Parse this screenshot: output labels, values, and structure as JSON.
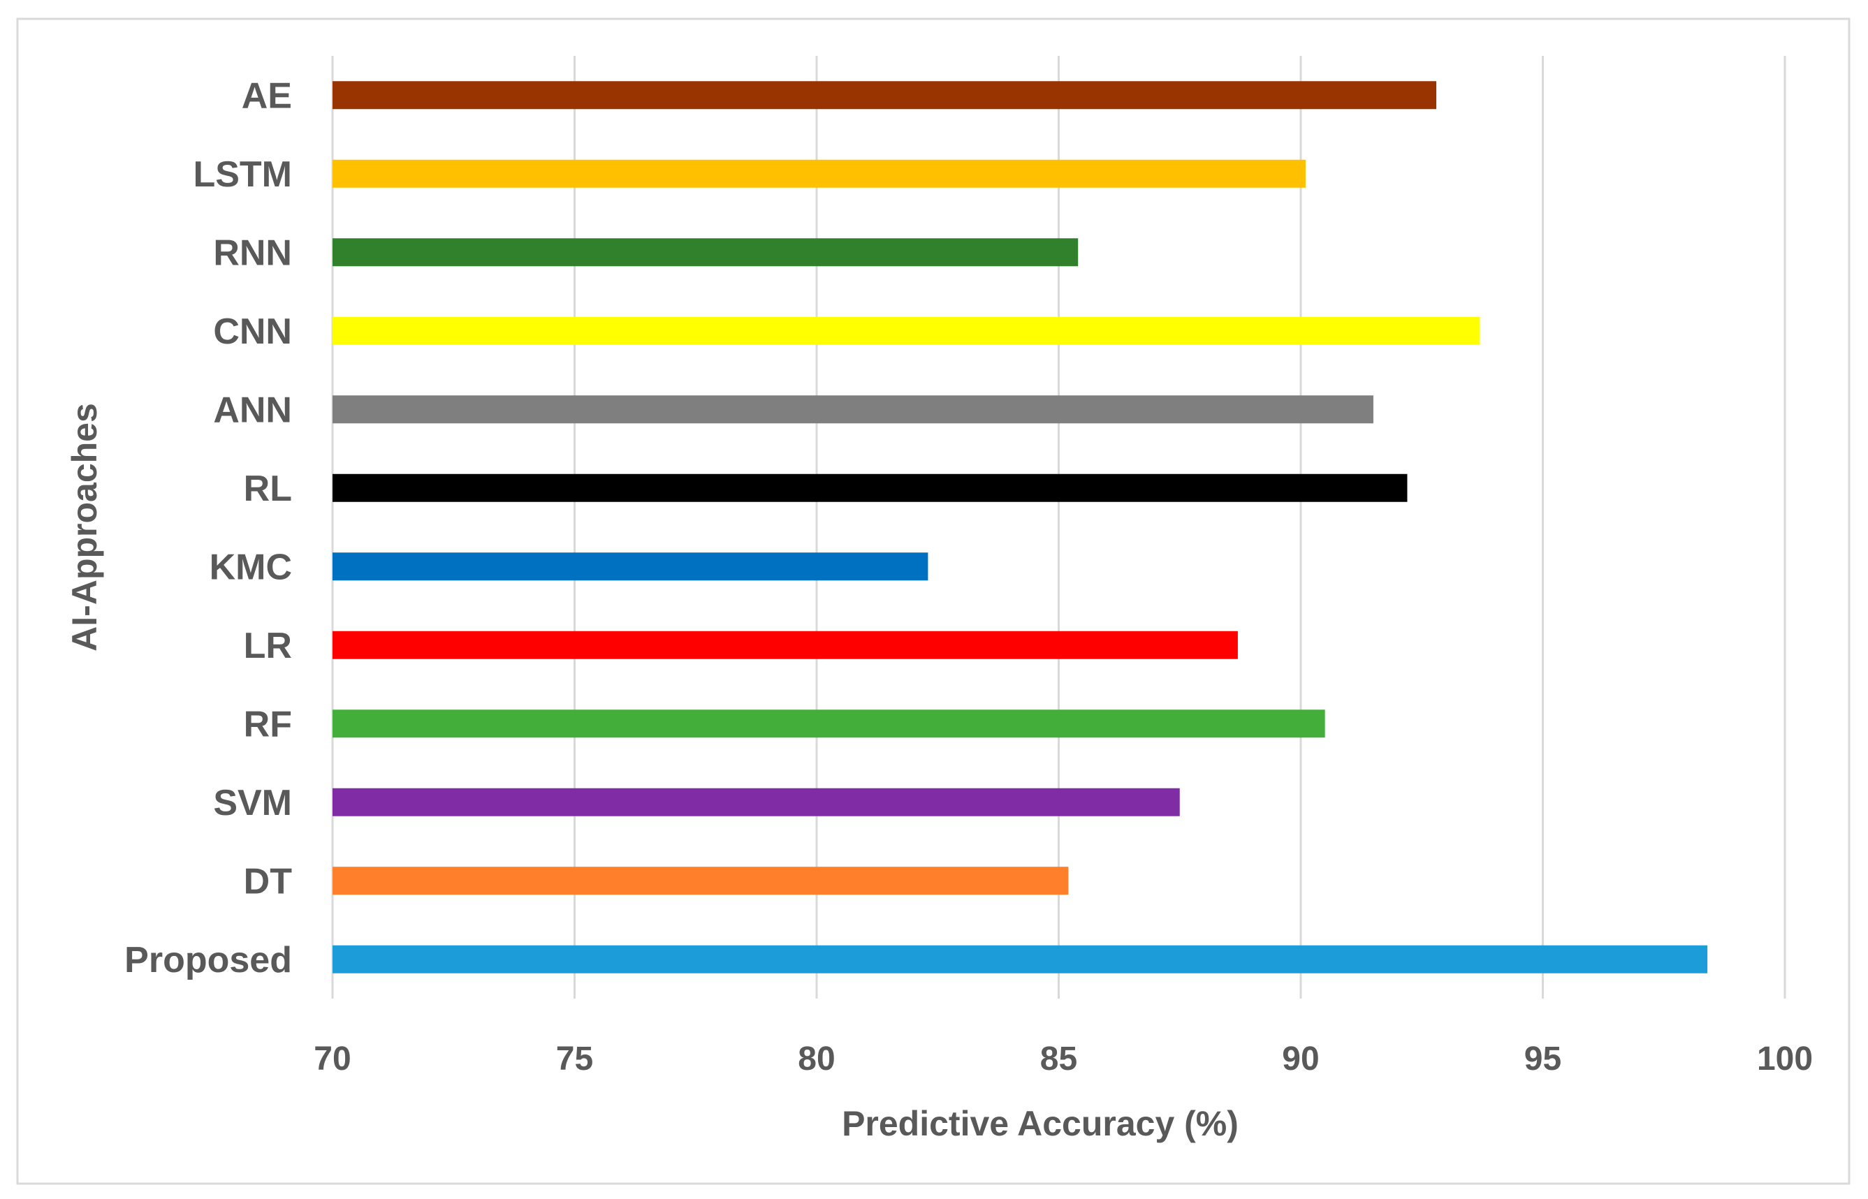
{
  "chart_data": {
    "type": "bar",
    "orientation": "horizontal",
    "title": "",
    "xlabel": "Predictive Accuracy (%)",
    "ylabel": "AI-Approaches",
    "xlim": [
      70,
      100
    ],
    "xticks": [
      "70",
      "75",
      "80",
      "85",
      "90",
      "95",
      "100"
    ],
    "grid": true,
    "legend": "none",
    "categories": [
      "AE",
      "LSTM",
      "RNN",
      "CNN",
      "ANN",
      "RL",
      "KMC",
      "LR",
      "RF",
      "SVM",
      "DT",
      "Proposed"
    ],
    "values": [
      92.8,
      90.1,
      85.4,
      93.7,
      91.5,
      92.2,
      82.3,
      88.7,
      90.5,
      87.5,
      85.2,
      98.4
    ],
    "colors": [
      "#993300",
      "#FFC000",
      "#31812C",
      "#FFFF00",
      "#7F7F7F",
      "#000000",
      "#0070C0",
      "#FF0000",
      "#43AF3A",
      "#7F2CA5",
      "#FF7F2A",
      "#1C9CD8"
    ]
  }
}
